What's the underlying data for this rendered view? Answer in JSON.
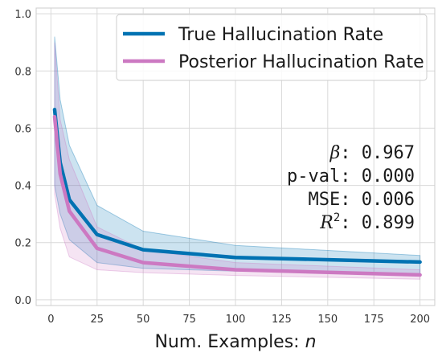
{
  "chart_data": {
    "type": "line",
    "xlabel": "Num. Examples: ",
    "xlabel_var": "n",
    "ylabel": "",
    "xlim": [
      -8,
      208
    ],
    "ylim": [
      -0.02,
      1.02
    ],
    "xticks": [
      0,
      25,
      50,
      75,
      100,
      125,
      150,
      175,
      200
    ],
    "yticks": [
      0.0,
      0.2,
      0.4,
      0.6,
      0.8,
      1.0
    ],
    "xtick_labels": [
      "0",
      "25",
      "50",
      "75",
      "100",
      "125",
      "150",
      "175",
      "200"
    ],
    "ytick_labels": [
      "0.0",
      "0.2",
      "0.4",
      "0.6",
      "0.8",
      "1.0"
    ],
    "grid": true,
    "legend_position": "top-right",
    "series": [
      {
        "name": "True Hallucination Rate",
        "color": "#0072B2",
        "x": [
          2,
          5,
          10,
          25,
          50,
          100,
          200
        ],
        "y": [
          0.665,
          0.48,
          0.35,
          0.228,
          0.175,
          0.148,
          0.132
        ],
        "band_low": [
          0.4,
          0.3,
          0.21,
          0.13,
          0.11,
          0.1,
          0.09
        ],
        "band_high": [
          0.92,
          0.7,
          0.54,
          0.33,
          0.24,
          0.19,
          0.155
        ]
      },
      {
        "name": "Posterior Hallucination Rate",
        "color": "#CC79C2",
        "x": [
          2,
          5,
          10,
          25,
          50,
          100,
          200
        ],
        "y": [
          0.64,
          0.44,
          0.31,
          0.18,
          0.13,
          0.105,
          0.087
        ],
        "band_low": [
          0.37,
          0.25,
          0.15,
          0.105,
          0.095,
          0.085,
          0.072
        ],
        "band_high": [
          0.9,
          0.63,
          0.49,
          0.255,
          0.175,
          0.13,
          0.105
        ]
      }
    ],
    "annotation": {
      "beta_label": "β",
      "beta_value": ": 0.967",
      "pval_line": "p-val: 0.000",
      "mse_line": "MSE: 0.006",
      "r2_label": "R",
      "r2_sup": "2",
      "r2_value": ": 0.899"
    }
  }
}
